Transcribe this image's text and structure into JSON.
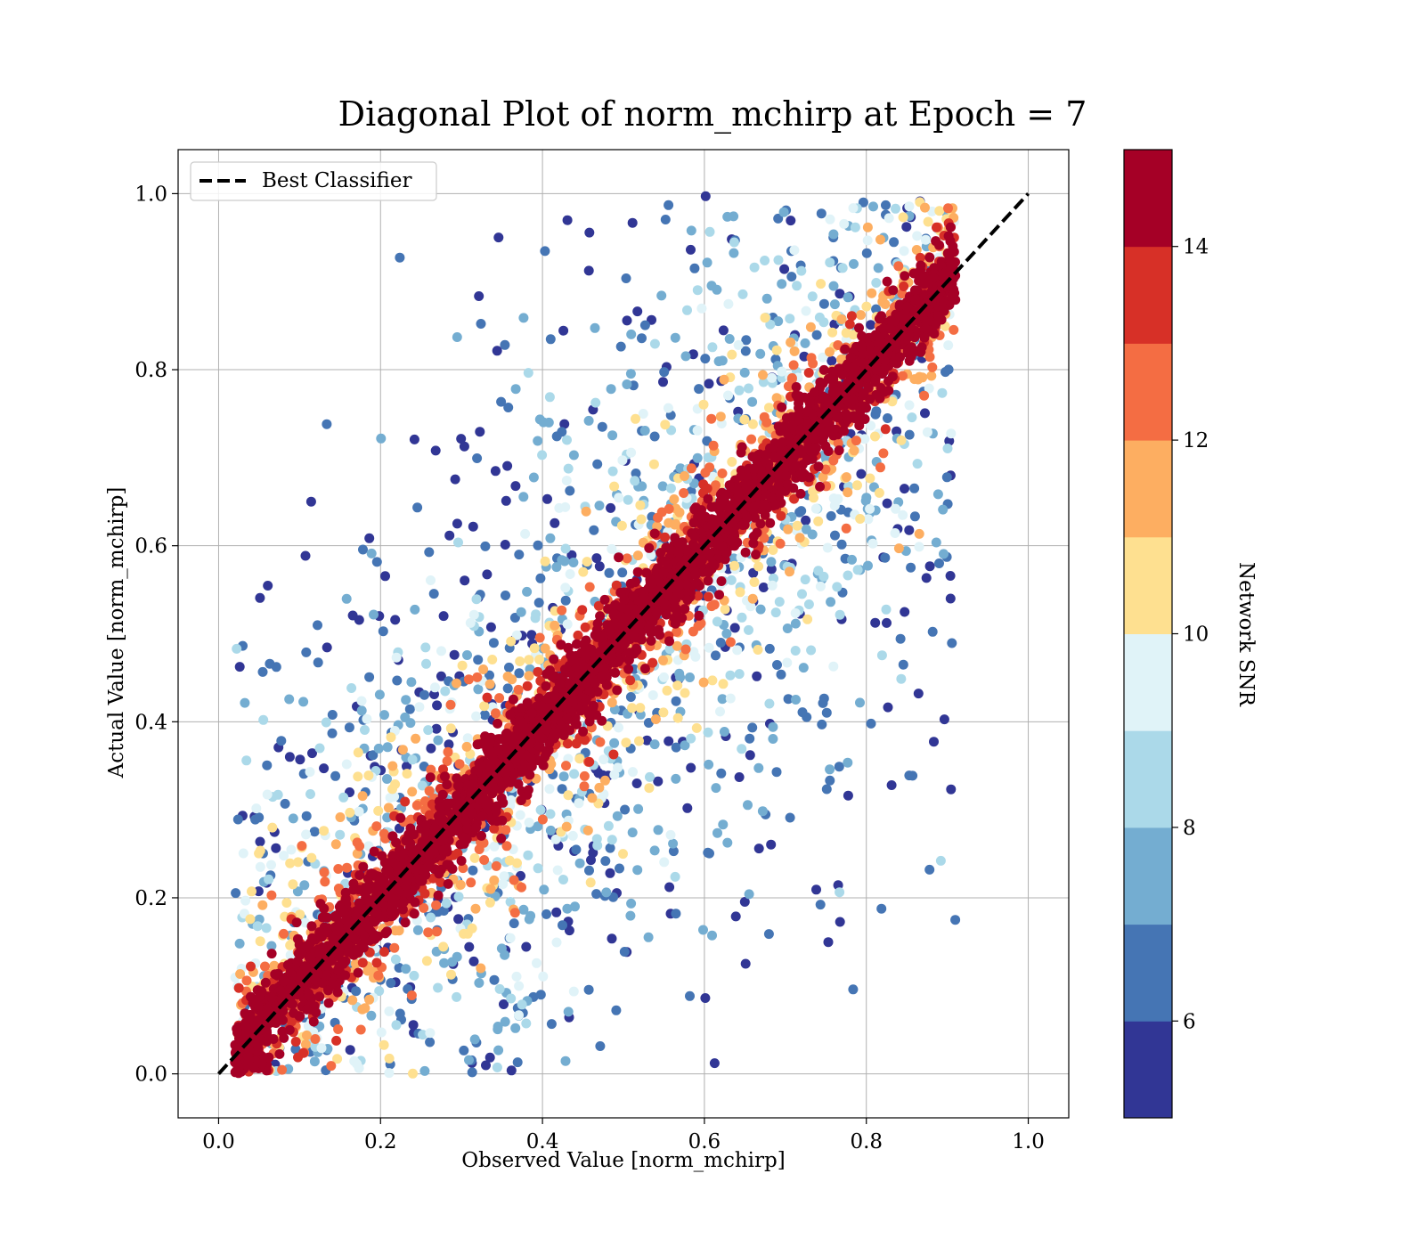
{
  "chart_data": {
    "type": "scatter",
    "title": "Diagonal Plot of norm_mchirp at Epoch = 7",
    "xlabel": "Observed Value [norm_mchirp]",
    "ylabel": "Actual Value [norm_mchirp]",
    "xlim": [
      -0.05,
      1.05
    ],
    "ylim": [
      -0.05,
      1.05
    ],
    "xticks": [
      0.0,
      0.2,
      0.4,
      0.6,
      0.8,
      1.0
    ],
    "yticks": [
      0.0,
      0.2,
      0.4,
      0.6,
      0.8,
      1.0
    ],
    "x_tick_labels": [
      "0.0",
      "0.2",
      "0.4",
      "0.6",
      "0.8",
      "1.0"
    ],
    "y_tick_labels": [
      "0.0",
      "0.2",
      "0.4",
      "0.6",
      "0.8",
      "1.0"
    ],
    "grid": true,
    "legend": {
      "placement": "top-left",
      "entries": [
        "Best Classifier"
      ]
    },
    "reference_line": {
      "name": "Best Classifier",
      "style": "dashed",
      "color": "#000000",
      "x": [
        0.0,
        1.0
      ],
      "y": [
        0.0,
        1.0
      ]
    },
    "colorbar": {
      "label": "Network SNR",
      "range": [
        5,
        15
      ],
      "ticks": [
        6,
        8,
        10,
        12,
        14
      ],
      "tick_labels": [
        "6",
        "8",
        "10",
        "12",
        "14"
      ],
      "colors": [
        "#313695",
        "#4575b4",
        "#74add1",
        "#abd9e9",
        "#e0f3f8",
        "#fee090",
        "#fdae61",
        "#f46d43",
        "#d73027",
        "#a50026"
      ]
    },
    "point_cloud": {
      "description_values": "points cluster along y = x; high SNR (red) tightly on diagonal, low SNR (blue) widely scattered",
      "x_range": [
        0.02,
        0.91
      ],
      "y_range": [
        0.0,
        1.0
      ],
      "approx_points": 6000
    }
  }
}
